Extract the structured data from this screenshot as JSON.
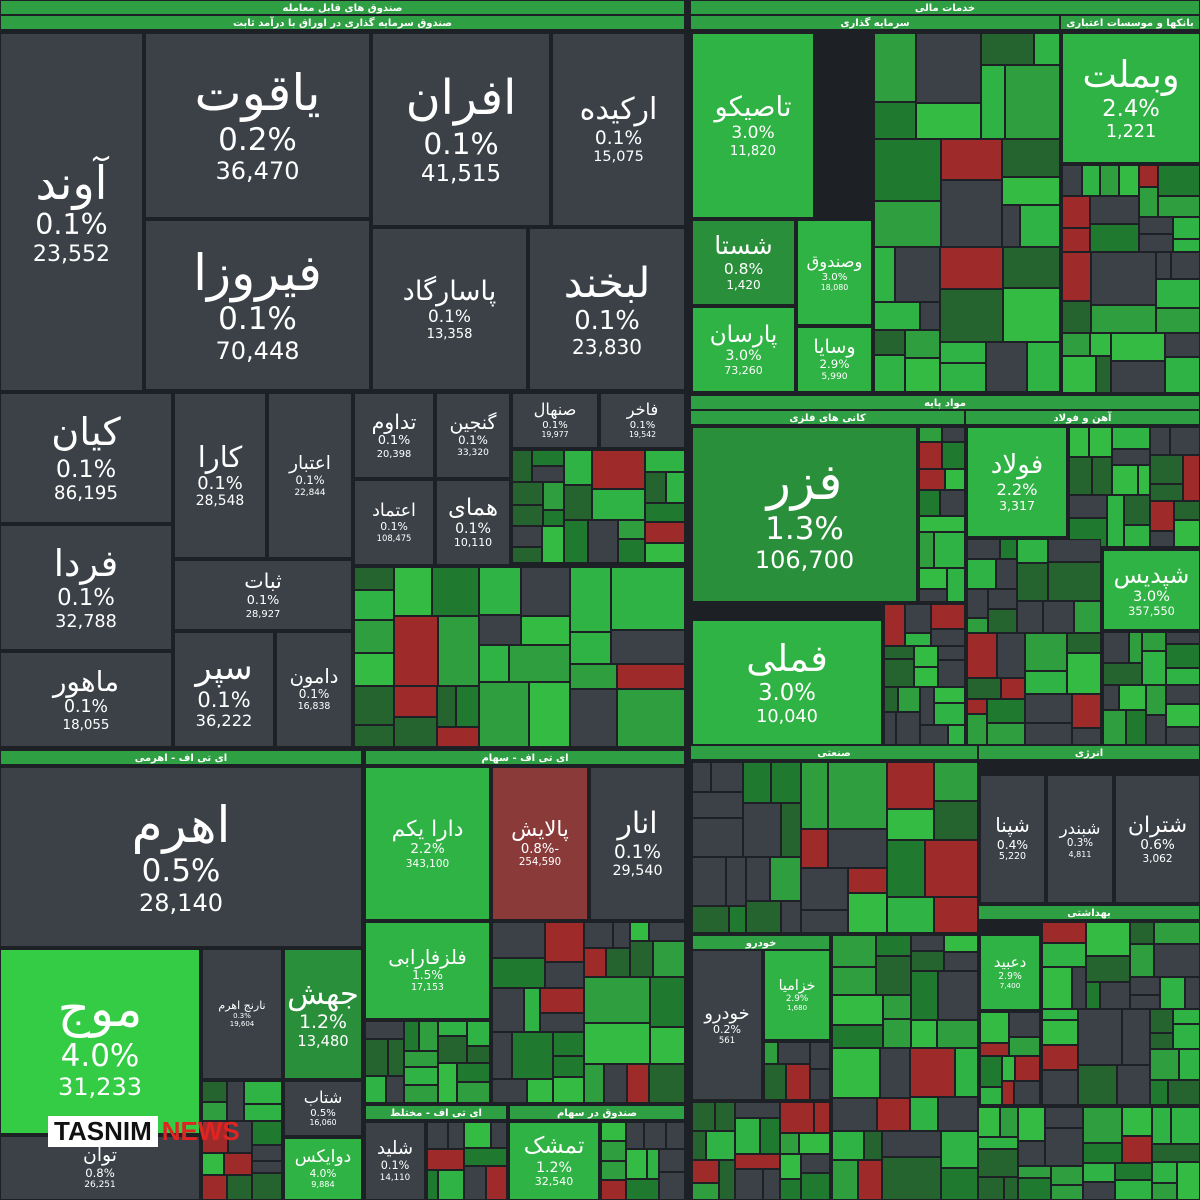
{
  "headers": [
    "صندوق های قابل معامله",
    "صندوق سرمایه گذاری در اوراق با درآمد ثابت",
    "خدمات مالی",
    "سرمایه گذاری",
    "بانکها و موسسات اعتباری",
    "مواد پایه",
    "کانی های فلزی",
    "آهن و فولاد",
    "ای تی اف - اهرمی",
    "ای تی اف - سهام",
    "صنعتی",
    "انرژی",
    "ای تی اف - مختلط",
    "صندوق در سهام",
    "خودرو",
    "بهداشتی"
  ],
  "tiles": [
    {
      "name": "آوند",
      "change": "0.1%",
      "volume": "23,552"
    },
    {
      "name": "یاقوت",
      "change": "0.2%",
      "volume": "36,470"
    },
    {
      "name": "افران",
      "change": "0.1%",
      "volume": "41,515"
    },
    {
      "name": "ارکیده",
      "change": "0.1%",
      "volume": "15,075"
    },
    {
      "name": "فیروزا",
      "change": "0.1%",
      "volume": "70,448"
    },
    {
      "name": "پاسارگاد",
      "change": "0.1%",
      "volume": "13,358"
    },
    {
      "name": "لبخند",
      "change": "0.1%",
      "volume": "23,830"
    },
    {
      "name": "کیان",
      "change": "0.1%",
      "volume": "86,195"
    },
    {
      "name": "فردا",
      "change": "0.1%",
      "volume": "32,788"
    },
    {
      "name": "ماهور",
      "change": "0.1%",
      "volume": "18,055"
    },
    {
      "name": "کارا",
      "change": "0.1%",
      "volume": "28,548"
    },
    {
      "name": "اعتبار",
      "change": "0.1%",
      "volume": "22,844"
    },
    {
      "name": "ثبات",
      "change": "0.1%",
      "volume": "28,927"
    },
    {
      "name": "سپر",
      "change": "0.1%",
      "volume": "36,222"
    },
    {
      "name": "دامون",
      "change": "0.1%",
      "volume": "16,838"
    },
    {
      "name": "تداوم",
      "change": "0.1%",
      "volume": "20,398"
    },
    {
      "name": "گنجین",
      "change": "0.1%",
      "volume": "33,320"
    },
    {
      "name": "صنهال",
      "change": "0.1%",
      "volume": "19,977"
    },
    {
      "name": "فاخر",
      "change": "0.1%",
      "volume": "19,542"
    },
    {
      "name": "اعتماد",
      "change": "0.1%",
      "volume": "108,475"
    },
    {
      "name": "همای",
      "change": "0.1%",
      "volume": "10,110"
    },
    {
      "name": "اهرم",
      "change": "0.5%",
      "volume": "28,140"
    },
    {
      "name": "موج",
      "change": "4.0%",
      "volume": "31,233"
    },
    {
      "name": "نارنج اهرم",
      "change": "0.3%",
      "volume": "19,604"
    },
    {
      "name": "جهش",
      "change": "1.2%",
      "volume": "13,480"
    },
    {
      "name": "شتاب",
      "change": "0.5%",
      "volume": "16,060"
    },
    {
      "name": "توان",
      "change": "0.8%",
      "volume": "26,251"
    },
    {
      "name": "دوایکس",
      "change": "4.0%",
      "volume": "9,884"
    },
    {
      "name": "دارا یکم",
      "change": "2.2%",
      "volume": "343,100"
    },
    {
      "name": "پالایش",
      "change": "-0.8%",
      "volume": "254,590"
    },
    {
      "name": "انار",
      "change": "0.1%",
      "volume": "29,540"
    },
    {
      "name": "فلزفارابی",
      "change": "1.5%",
      "volume": "17,153"
    },
    {
      "name": "شلید",
      "change": "0.1%",
      "volume": "14,110"
    },
    {
      "name": "تمشک",
      "change": "1.2%",
      "volume": "32,540"
    },
    {
      "name": "تاصیکو",
      "change": "3.0%",
      "volume": "11,820"
    },
    {
      "name": "شستا",
      "change": "0.8%",
      "volume": "1,420"
    },
    {
      "name": "پارسان",
      "change": "3.0%",
      "volume": "73,260"
    },
    {
      "name": "وصندوق",
      "change": "3.0%",
      "volume": "18,080"
    },
    {
      "name": "وسایا",
      "change": "2.9%",
      "volume": "5,990"
    },
    {
      "name": "وبملت",
      "change": "2.4%",
      "volume": "1,221"
    },
    {
      "name": "فزر",
      "change": "1.3%",
      "volume": "106,700"
    },
    {
      "name": "فولاد",
      "change": "2.2%",
      "volume": "3,317"
    },
    {
      "name": "فملی",
      "change": "3.0%",
      "volume": "10,040"
    },
    {
      "name": "شپدیس",
      "change": "3.0%",
      "volume": "357,550"
    },
    {
      "name": "شپنا",
      "change": "0.4%",
      "volume": "5,220"
    },
    {
      "name": "شبندر",
      "change": "0.3%",
      "volume": "4,811"
    },
    {
      "name": "شتران",
      "change": "0.6%",
      "volume": "3,062"
    },
    {
      "name": "خودرو",
      "change": "0.2%",
      "volume": "561"
    },
    {
      "name": "خزامیا",
      "change": "2.9%",
      "volume": "1,680"
    },
    {
      "name": "دعبید",
      "change": "2.9%",
      "volume": "7,400"
    }
  ],
  "watermark": {
    "brand": "TASNIM",
    "suffix": "NEWS"
  }
}
